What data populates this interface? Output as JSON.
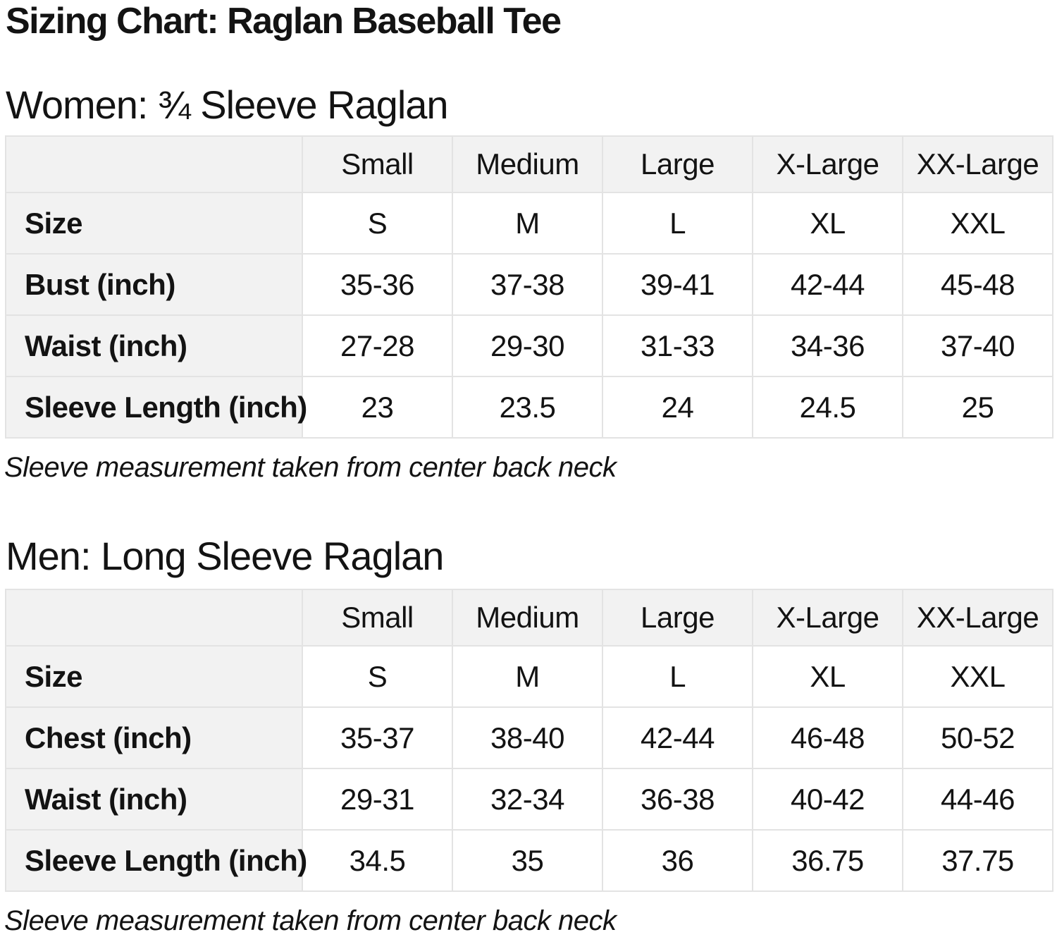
{
  "page": {
    "title": "Sizing Chart: Raglan Baseball Tee"
  },
  "colors": {
    "text": "#131313",
    "header_cell_background": "#f2f2f2",
    "table_border": "#e3e3e3",
    "page_background": "#ffffff"
  },
  "sections": [
    {
      "heading": "Women: ¾ Sleeve Raglan",
      "note": "Sleeve measurement taken from center back neck",
      "table": {
        "column_headers": [
          "",
          "Small",
          "Medium",
          "Large",
          "X-Large",
          "XX-Large"
        ],
        "rows": [
          {
            "label": "Size",
            "values": [
              "S",
              "M",
              "L",
              "XL",
              "XXL"
            ]
          },
          {
            "label": "Bust (inch)",
            "values": [
              "35-36",
              "37-38",
              "39-41",
              "42-44",
              "45-48"
            ]
          },
          {
            "label": "Waist (inch)",
            "values": [
              "27-28",
              "29-30",
              "31-33",
              "34-36",
              "37-40"
            ]
          },
          {
            "label": "Sleeve Length (inch)",
            "values": [
              "23",
              "23.5",
              "24",
              "24.5",
              "25"
            ]
          }
        ]
      }
    },
    {
      "heading": "Men: Long Sleeve Raglan",
      "note": "Sleeve measurement taken from center back neck",
      "table": {
        "column_headers": [
          "",
          "Small",
          "Medium",
          "Large",
          "X-Large",
          "XX-Large"
        ],
        "rows": [
          {
            "label": "Size",
            "values": [
              "S",
              "M",
              "L",
              "XL",
              "XXL"
            ]
          },
          {
            "label": "Chest (inch)",
            "values": [
              "35-37",
              "38-40",
              "42-44",
              "46-48",
              "50-52"
            ]
          },
          {
            "label": "Waist (inch)",
            "values": [
              "29-31",
              "32-34",
              "36-38",
              "40-42",
              "44-46"
            ]
          },
          {
            "label": "Sleeve Length (inch)",
            "values": [
              "34.5",
              "35",
              "36",
              "36.75",
              "37.75"
            ]
          }
        ]
      }
    }
  ]
}
